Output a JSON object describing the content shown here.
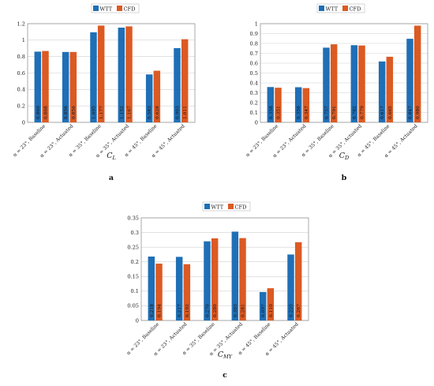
{
  "chart_data": [
    {
      "type": "bar",
      "panel_label": "a",
      "xlabel": "C",
      "xlabel_sub": "L",
      "categories": [
        "α = 23°, Baseline",
        "α = 23°, Actuated",
        "α = 35°, Baseline",
        "α = 35°, Actuated",
        "α = 45°, Baseline",
        "α = 45°, Actuated"
      ],
      "series": [
        {
          "name": "WTT",
          "values": [
            0.86,
            0.856,
            1.095,
            1.152,
            0.583,
            0.903
          ],
          "labels": [
            "0.860",
            "0.856",
            "1.095",
            "1.152",
            "0.583",
            "0.903"
          ]
        },
        {
          "name": "CFD",
          "values": [
            0.868,
            0.856,
            1.177,
            1.167,
            0.628,
            1.011
          ],
          "labels": [
            "0.868",
            "0.856",
            "1.177",
            "1.167",
            "0.628",
            "1.011"
          ]
        }
      ],
      "ylim": [
        0,
        1.2
      ],
      "yticks": [
        "0",
        "0.2",
        "0.4",
        "0.6",
        "0.8",
        "1",
        "1.2"
      ],
      "grid": true,
      "legend": "top-center"
    },
    {
      "type": "bar",
      "panel_label": "b",
      "xlabel": "C",
      "xlabel_sub": "D",
      "categories": [
        "α = 23°, Baseline",
        "α = 23°, Actuated",
        "α = 35°, Baseline",
        "α = 35°, Actuated",
        "α = 45°, Baseline",
        "α = 45°, Actuated"
      ],
      "series": [
        {
          "name": "WTT",
          "values": [
            0.358,
            0.356,
            0.757,
            0.782,
            0.617,
            0.847
          ],
          "labels": [
            "0.358",
            "0.356",
            "0.757",
            "0.782",
            "0.617",
            "0.847"
          ]
        },
        {
          "name": "CFD",
          "values": [
            0.351,
            0.347,
            0.791,
            0.779,
            0.665,
            0.98
          ],
          "labels": [
            "0.351",
            "0.347",
            "0.791",
            "0.779",
            "0.665",
            "0.980"
          ]
        }
      ],
      "ylim": [
        0,
        1
      ],
      "yticks": [
        "0",
        "0.1",
        "0.2",
        "0.3",
        "0.4",
        "0.5",
        "0.6",
        "0.7",
        "0.8",
        "0.9",
        "1"
      ],
      "grid": true,
      "legend": "top-center"
    },
    {
      "type": "bar",
      "panel_label": "c",
      "xlabel": "C",
      "xlabel_sub": "MY",
      "categories": [
        "α = 23°, Baseline",
        "α = 23°, Actuated",
        "α = 35°, Baseline",
        "α = 35°, Actuated",
        "α = 45°, Baseline",
        "α = 45°, Actuated"
      ],
      "series": [
        {
          "name": "WTT",
          "values": [
            0.218,
            0.217,
            0.27,
            0.303,
            0.097,
            0.225
          ],
          "labels": [
            "0.218",
            "0.217",
            "0.270",
            "0.303",
            "0.097",
            "0.225"
          ]
        },
        {
          "name": "CFD",
          "values": [
            0.194,
            0.192,
            0.28,
            0.281,
            0.11,
            0.267
          ],
          "labels": [
            "0.194",
            "0.192",
            "0.280",
            "0.281",
            "0.110",
            "0.267"
          ]
        }
      ],
      "ylim": [
        0,
        0.35
      ],
      "yticks": [
        "0",
        "0.05",
        "0.1",
        "0.15",
        "0.2",
        "0.25",
        "0.3",
        "0.35"
      ],
      "grid": true,
      "legend": "top-center"
    }
  ],
  "colors": {
    "WTT": "#1f6fb6",
    "CFD": "#dc5a23"
  }
}
